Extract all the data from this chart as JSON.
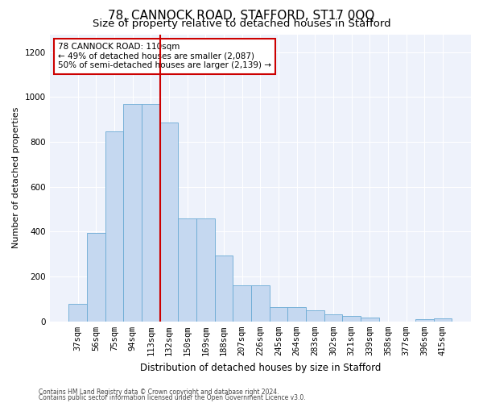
{
  "title": "78, CANNOCK ROAD, STAFFORD, ST17 0QQ",
  "subtitle": "Size of property relative to detached houses in Stafford",
  "xlabel": "Distribution of detached houses by size in Stafford",
  "ylabel": "Number of detached properties",
  "categories": [
    "37sqm",
    "56sqm",
    "75sqm",
    "94sqm",
    "113sqm",
    "132sqm",
    "150sqm",
    "169sqm",
    "188sqm",
    "207sqm",
    "226sqm",
    "245sqm",
    "264sqm",
    "283sqm",
    "302sqm",
    "321sqm",
    "339sqm",
    "358sqm",
    "377sqm",
    "396sqm",
    "415sqm"
  ],
  "values": [
    80,
    395,
    848,
    970,
    970,
    885,
    460,
    460,
    295,
    160,
    160,
    65,
    65,
    50,
    30,
    25,
    18,
    0,
    0,
    10,
    15
  ],
  "bar_color": "#c5d8f0",
  "bar_edge_color": "#6aaad4",
  "vline_index": 4,
  "vline_color": "#cc0000",
  "annotation_text": "78 CANNOCK ROAD: 110sqm\n← 49% of detached houses are smaller (2,087)\n50% of semi-detached houses are larger (2,139) →",
  "annotation_box_color": "#ffffff",
  "annotation_box_edge": "#cc0000",
  "footer1": "Contains HM Land Registry data © Crown copyright and database right 2024.",
  "footer2": "Contains public sector information licensed under the Open Government Licence v3.0.",
  "plot_bg_color": "#eef2fb",
  "fig_bg_color": "#ffffff",
  "ylim": [
    0,
    1280
  ],
  "yticks": [
    0,
    200,
    400,
    600,
    800,
    1000,
    1200
  ],
  "title_fontsize": 11,
  "subtitle_fontsize": 9.5,
  "xlabel_fontsize": 8.5,
  "ylabel_fontsize": 8,
  "tick_fontsize": 7.5,
  "footer_fontsize": 5.5
}
